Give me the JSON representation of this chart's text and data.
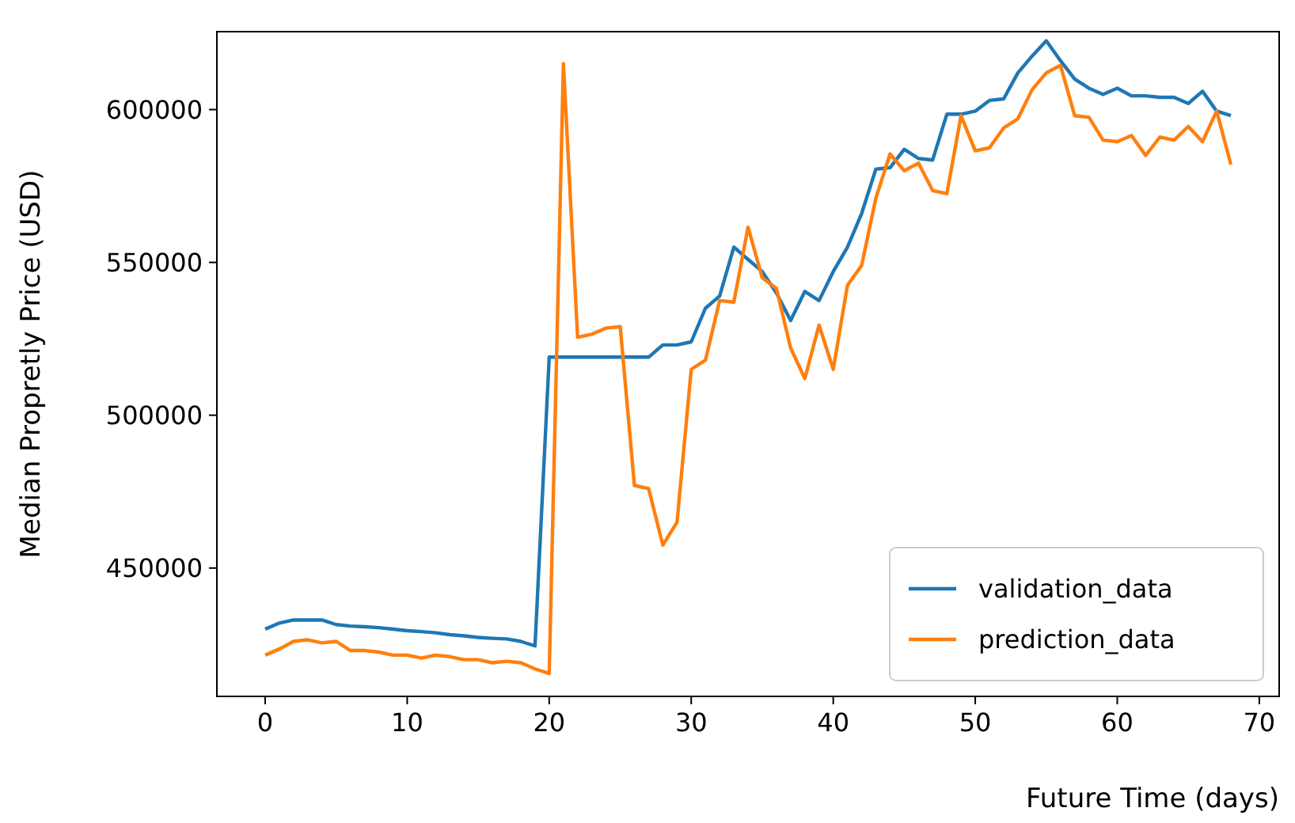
{
  "chart_data": {
    "type": "line",
    "xlabel": "Future Time (days)",
    "ylabel": "Median Propretly Price (USD)",
    "x": [
      0,
      1,
      2,
      3,
      4,
      5,
      6,
      7,
      8,
      9,
      10,
      11,
      12,
      13,
      14,
      15,
      16,
      17,
      18,
      19,
      20,
      21,
      22,
      23,
      24,
      25,
      26,
      27,
      28,
      29,
      30,
      31,
      32,
      33,
      34,
      35,
      36,
      37,
      38,
      39,
      40,
      41,
      42,
      43,
      44,
      45,
      46,
      47,
      48,
      49,
      50,
      51,
      52,
      53,
      54,
      55,
      56,
      57,
      58,
      59,
      60,
      61,
      62,
      63,
      64,
      65,
      66,
      67,
      68
    ],
    "series": [
      {
        "name": "validation_data",
        "color": "#1f77b4",
        "values": [
          430000,
          432000,
          433000,
          433000,
          433000,
          431500,
          431000,
          430800,
          430500,
          430000,
          429500,
          429200,
          428800,
          428200,
          427800,
          427300,
          427000,
          426800,
          426000,
          424500,
          519000,
          519000,
          519000,
          519000,
          519000,
          519000,
          519000,
          519000,
          523000,
          523000,
          524000,
          535000,
          539000,
          555000,
          551000,
          547000,
          540000,
          531000,
          540500,
          537500,
          547000,
          555000,
          566000,
          580500,
          581000,
          587000,
          584000,
          583500,
          598500,
          598500,
          599500,
          603000,
          603500,
          612000,
          617500,
          622500,
          616000,
          610000,
          607000,
          605000,
          607000,
          604500,
          604500,
          604000,
          604000,
          602000,
          606000,
          599500,
          598000
        ]
      },
      {
        "name": "prediction_data",
        "color": "#ff7f0e",
        "values": [
          421500,
          423500,
          426000,
          426500,
          425500,
          426000,
          423000,
          423000,
          422500,
          421500,
          421500,
          420500,
          421500,
          421000,
          420000,
          420000,
          419000,
          419500,
          419000,
          417000,
          415500,
          615000,
          525500,
          526500,
          528500,
          529000,
          477000,
          476000,
          457500,
          465000,
          515000,
          518000,
          537500,
          537000,
          561500,
          545000,
          541500,
          522000,
          512000,
          529500,
          515000,
          542500,
          549000,
          571000,
          585500,
          580000,
          582500,
          573500,
          572500,
          598000,
          586500,
          587500,
          594000,
          597000,
          606500,
          612000,
          614500,
          598000,
          597500,
          590000,
          589500,
          591500,
          585000,
          591000,
          590000,
          594500,
          589500,
          599500,
          582000
        ]
      }
    ],
    "xlim": [
      -3.4,
      71.4
    ],
    "xticks": [
      0,
      10,
      20,
      30,
      40,
      50,
      60,
      70
    ],
    "ylim": [
      408000,
      625500
    ],
    "yticks": [
      450000,
      500000,
      550000,
      600000
    ],
    "legend": "bottom right",
    "grid": false
  }
}
